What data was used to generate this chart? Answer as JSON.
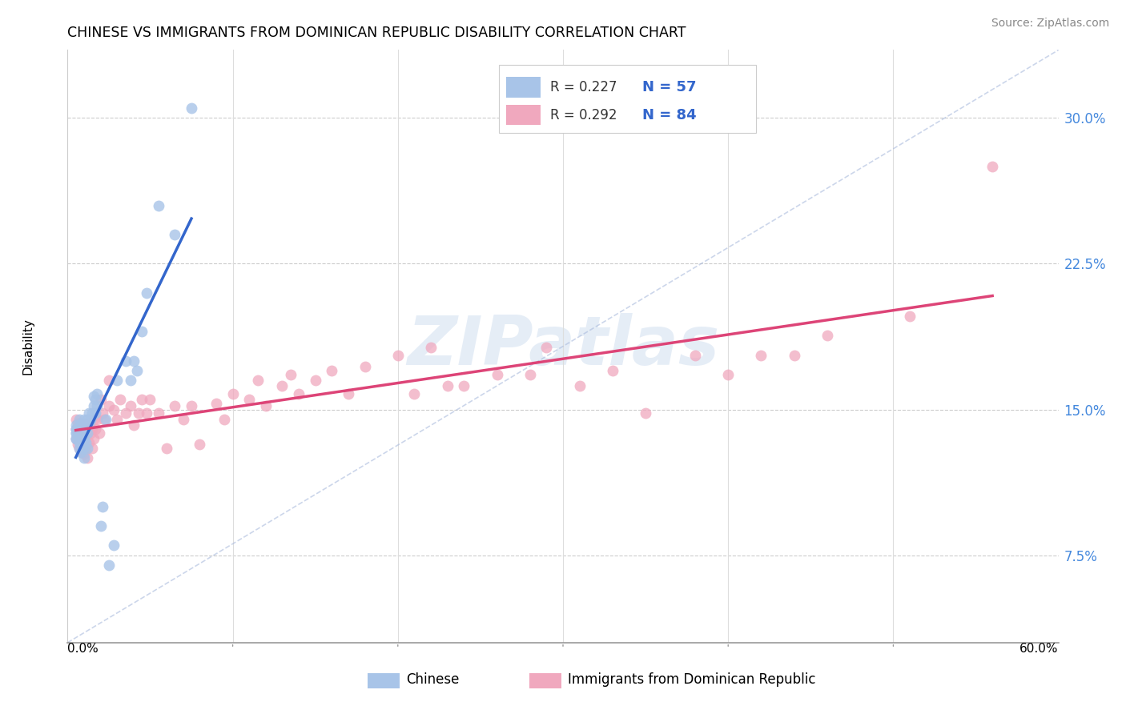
{
  "title": "CHINESE VS IMMIGRANTS FROM DOMINICAN REPUBLIC DISABILITY CORRELATION CHART",
  "source": "Source: ZipAtlas.com",
  "ylabel": "Disability",
  "yticks": [
    "7.5%",
    "15.0%",
    "22.5%",
    "30.0%"
  ],
  "ytick_vals": [
    0.075,
    0.15,
    0.225,
    0.3
  ],
  "xlim": [
    0.0,
    0.6
  ],
  "ylim": [
    0.03,
    0.335
  ],
  "color_chinese": "#a8c4e8",
  "color_dr": "#f0a8be",
  "line_color_chinese": "#3366cc",
  "line_color_dr": "#dd4477",
  "watermark_color": "#d0dff0",
  "chinese_x": [
    0.005,
    0.005,
    0.005,
    0.005,
    0.005,
    0.005,
    0.005,
    0.007,
    0.007,
    0.007,
    0.007,
    0.007,
    0.007,
    0.007,
    0.008,
    0.008,
    0.008,
    0.008,
    0.009,
    0.009,
    0.009,
    0.01,
    0.01,
    0.01,
    0.01,
    0.01,
    0.01,
    0.011,
    0.011,
    0.012,
    0.012,
    0.012,
    0.013,
    0.013,
    0.014,
    0.015,
    0.016,
    0.016,
    0.017,
    0.017,
    0.018,
    0.018,
    0.02,
    0.021,
    0.023,
    0.025,
    0.028,
    0.03,
    0.035,
    0.038,
    0.04,
    0.042,
    0.045,
    0.048,
    0.055,
    0.065,
    0.075
  ],
  "chinese_y": [
    0.135,
    0.135,
    0.138,
    0.138,
    0.14,
    0.14,
    0.142,
    0.13,
    0.133,
    0.135,
    0.137,
    0.14,
    0.142,
    0.145,
    0.128,
    0.133,
    0.138,
    0.143,
    0.13,
    0.135,
    0.14,
    0.125,
    0.13,
    0.134,
    0.137,
    0.14,
    0.145,
    0.133,
    0.14,
    0.13,
    0.138,
    0.145,
    0.143,
    0.148,
    0.145,
    0.148,
    0.152,
    0.157,
    0.148,
    0.155,
    0.152,
    0.158,
    0.09,
    0.1,
    0.145,
    0.07,
    0.08,
    0.165,
    0.175,
    0.165,
    0.175,
    0.17,
    0.19,
    0.21,
    0.255,
    0.24,
    0.305
  ],
  "dr_x": [
    0.005,
    0.005,
    0.005,
    0.006,
    0.006,
    0.006,
    0.007,
    0.007,
    0.007,
    0.008,
    0.008,
    0.009,
    0.009,
    0.009,
    0.01,
    0.01,
    0.01,
    0.01,
    0.011,
    0.011,
    0.012,
    0.012,
    0.013,
    0.013,
    0.014,
    0.015,
    0.015,
    0.016,
    0.016,
    0.017,
    0.018,
    0.019,
    0.02,
    0.021,
    0.022,
    0.025,
    0.025,
    0.028,
    0.03,
    0.032,
    0.035,
    0.038,
    0.04,
    0.043,
    0.045,
    0.048,
    0.05,
    0.055,
    0.06,
    0.065,
    0.07,
    0.075,
    0.08,
    0.09,
    0.095,
    0.1,
    0.11,
    0.115,
    0.12,
    0.13,
    0.135,
    0.14,
    0.15,
    0.16,
    0.17,
    0.18,
    0.2,
    0.21,
    0.22,
    0.23,
    0.24,
    0.26,
    0.28,
    0.29,
    0.31,
    0.33,
    0.35,
    0.38,
    0.4,
    0.42,
    0.44,
    0.46,
    0.51,
    0.56
  ],
  "dr_y": [
    0.135,
    0.14,
    0.145,
    0.132,
    0.138,
    0.143,
    0.13,
    0.136,
    0.14,
    0.133,
    0.14,
    0.128,
    0.133,
    0.14,
    0.127,
    0.132,
    0.137,
    0.143,
    0.13,
    0.137,
    0.125,
    0.138,
    0.133,
    0.142,
    0.138,
    0.13,
    0.14,
    0.135,
    0.145,
    0.14,
    0.145,
    0.138,
    0.155,
    0.148,
    0.145,
    0.152,
    0.165,
    0.15,
    0.145,
    0.155,
    0.148,
    0.152,
    0.142,
    0.148,
    0.155,
    0.148,
    0.155,
    0.148,
    0.13,
    0.152,
    0.145,
    0.152,
    0.132,
    0.153,
    0.145,
    0.158,
    0.155,
    0.165,
    0.152,
    0.162,
    0.168,
    0.158,
    0.165,
    0.17,
    0.158,
    0.172,
    0.178,
    0.158,
    0.182,
    0.162,
    0.162,
    0.168,
    0.168,
    0.182,
    0.162,
    0.17,
    0.148,
    0.178,
    0.168,
    0.178,
    0.178,
    0.188,
    0.198,
    0.275
  ],
  "diag_line_x": [
    0.0,
    0.6
  ],
  "diag_line_y": [
    0.03,
    0.335
  ]
}
